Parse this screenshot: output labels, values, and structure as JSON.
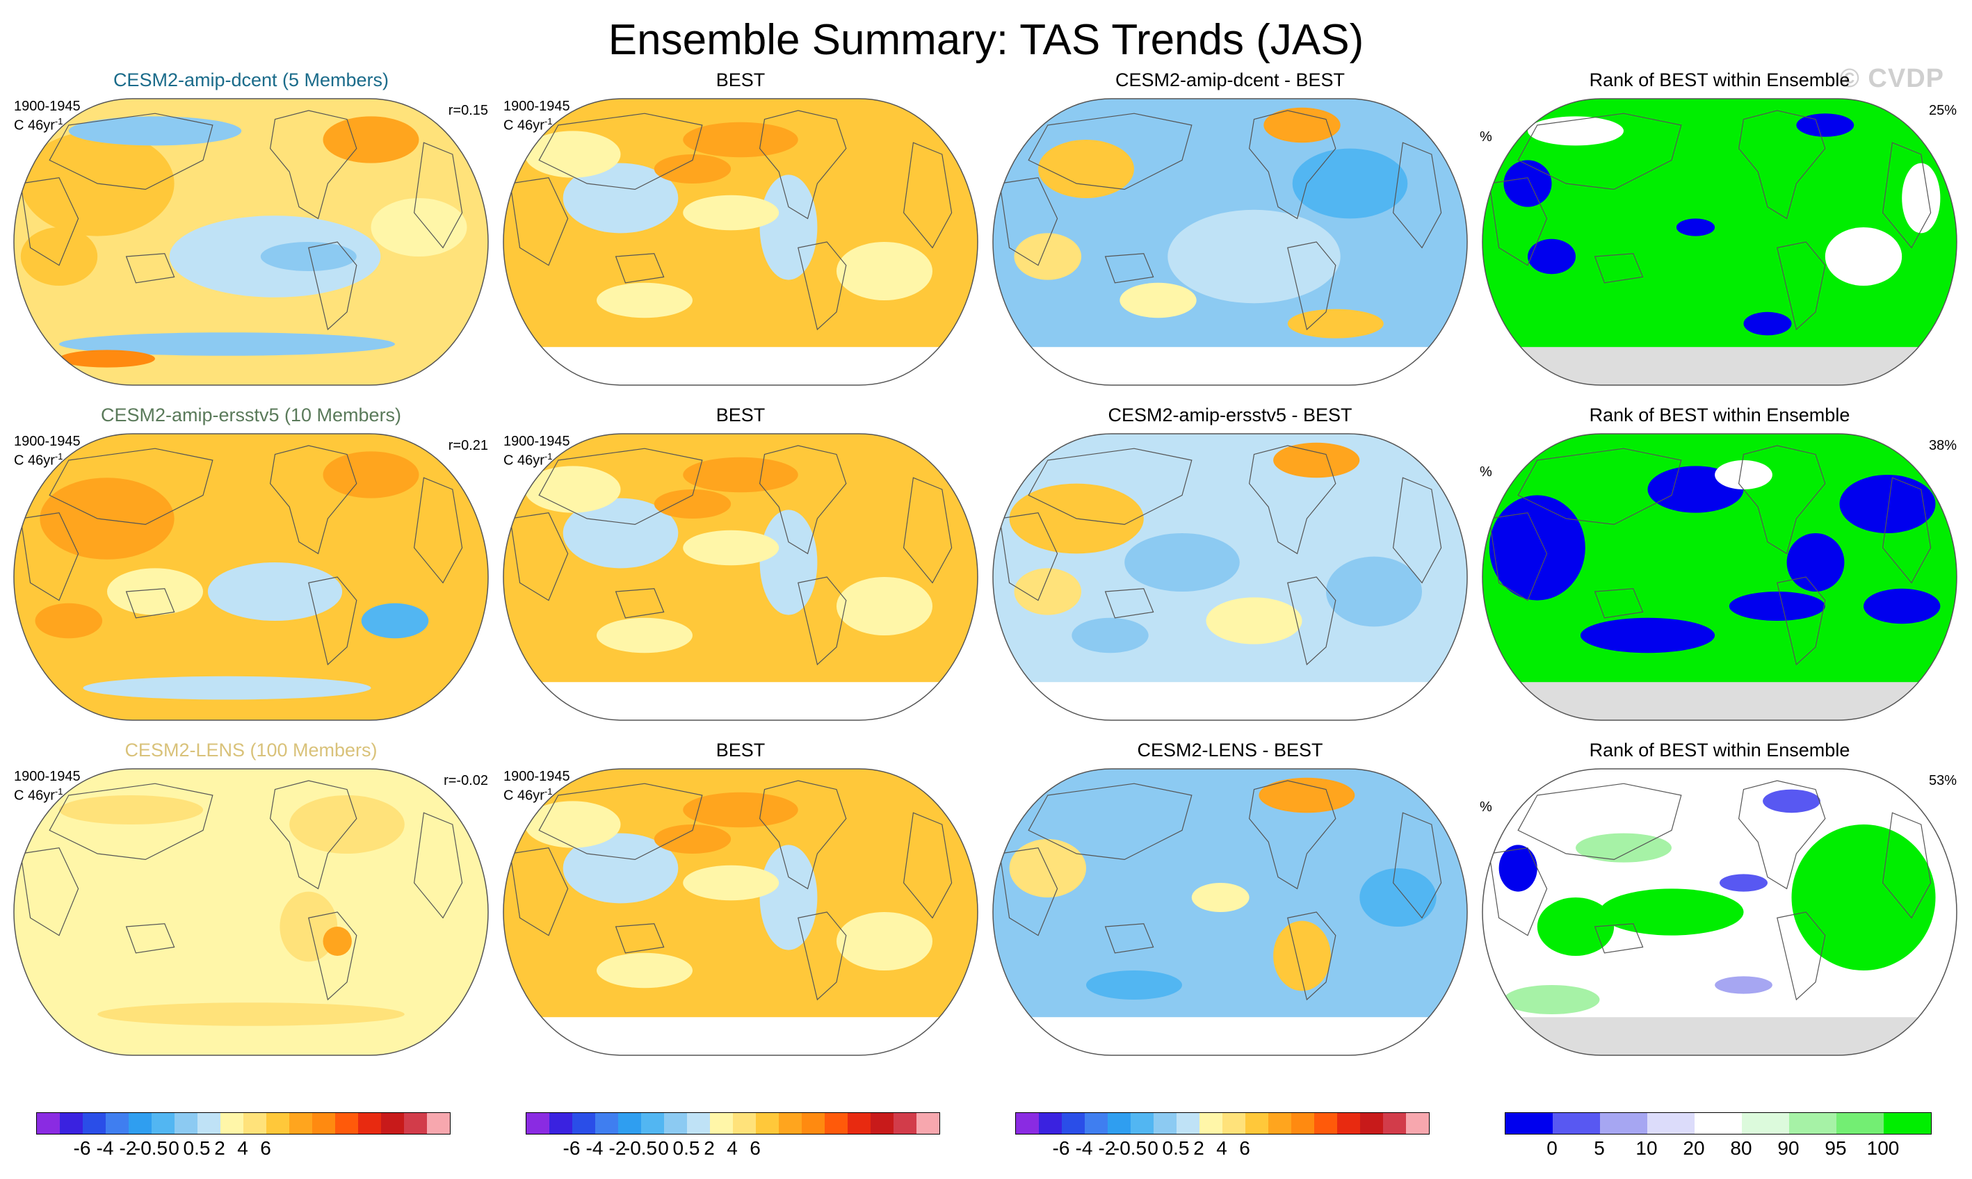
{
  "title": "Ensemble Summary: TAS Trends (JAS)",
  "watermark": "© CVDP",
  "colors": {
    "trend_scale": [
      "#8a2be2",
      "#3a22e0",
      "#2a4ee8",
      "#3f7ef0",
      "#2f9ef0",
      "#52b6f2",
      "#8ccaf2",
      "#bfe2f6",
      "#fff6a8",
      "#ffe27a",
      "#ffc83a",
      "#ffa51e",
      "#ff8a10",
      "#ff5a0a",
      "#e82a10",
      "#c81a1a",
      "#d23c4a",
      "#f7a7ae"
    ],
    "rank_scale": [
      "#0000ee",
      "#5858f2",
      "#a6a6f2",
      "#dcdcfa",
      "#ffffff",
      "#dcfadc",
      "#a6f2a6",
      "#73ee73",
      "#00ee00"
    ],
    "title_colors": {
      "cesm2_amip_dcent": "#1a6b8a",
      "cesm2_amip_ersstv5": "#5a7a5a",
      "cesm2_lens": "#d9c27a",
      "default": "#000000"
    },
    "land_outline": "#555555",
    "antarctica_fill": "#dddddd"
  },
  "rows": [
    {
      "panels": [
        {
          "title": "CESM2-amip-dcent (5 Members)",
          "title_color_key": "cesm2_amip_dcent",
          "period": "1900-1945",
          "units": "C 46yr",
          "units_sup": "-1",
          "corr": "r=0.15",
          "map_style": "model_dcent"
        },
        {
          "title": "BEST",
          "title_color_key": "default",
          "period": "1900-1945",
          "units": "C 46yr",
          "units_sup": "-1",
          "map_style": "obs_best"
        },
        {
          "title": "CESM2-amip-dcent - BEST",
          "title_color_key": "default",
          "map_style": "diff_dcent"
        },
        {
          "title": "Rank of BEST within Ensemble",
          "title_color_key": "default",
          "unit_pct": "%",
          "pct": "25%",
          "map_style": "rank_dcent"
        }
      ]
    },
    {
      "panels": [
        {
          "title": "CESM2-amip-ersstv5 (10 Members)",
          "title_color_key": "cesm2_amip_ersstv5",
          "period": "1900-1945",
          "units": "C 46yr",
          "units_sup": "-1",
          "corr": "r=0.21",
          "map_style": "model_ersst"
        },
        {
          "title": "BEST",
          "title_color_key": "default",
          "period": "1900-1945",
          "units": "C 46yr",
          "units_sup": "-1",
          "map_style": "obs_best"
        },
        {
          "title": "CESM2-amip-ersstv5 - BEST",
          "title_color_key": "default",
          "map_style": "diff_ersst"
        },
        {
          "title": "Rank of BEST within Ensemble",
          "title_color_key": "default",
          "unit_pct": "%",
          "pct": "38%",
          "map_style": "rank_ersst"
        }
      ]
    },
    {
      "panels": [
        {
          "title": "CESM2-LENS (100 Members)",
          "title_color_key": "cesm2_lens",
          "period": "1900-1945",
          "units": "C 46yr",
          "units_sup": "-1",
          "corr": "r=-0.02",
          "map_style": "model_lens"
        },
        {
          "title": "BEST",
          "title_color_key": "default",
          "period": "1900-1945",
          "units": "C 46yr",
          "units_sup": "-1",
          "map_style": "obs_best"
        },
        {
          "title": "CESM2-LENS - BEST",
          "title_color_key": "default",
          "map_style": "diff_lens"
        },
        {
          "title": "Rank of BEST within Ensemble",
          "title_color_key": "default",
          "unit_pct": "%",
          "pct": "53%",
          "map_style": "rank_lens"
        }
      ]
    }
  ],
  "chart_data": {
    "type": "heatmap",
    "projection": "Robinson (global, Pacific-centred)",
    "title": "Ensemble Summary: TAS Trends (JAS)",
    "period": "1900-1945",
    "units": "C 46yr-1",
    "correlations": {
      "CESM2-amip-dcent": 0.15,
      "CESM2-amip-ersstv5": 0.21,
      "CESM2-LENS": -0.02
    },
    "rank_percent": {
      "CESM2-amip-dcent": 25,
      "CESM2-amip-ersstv5": 38,
      "CESM2-LENS": 53
    },
    "trend_colorbar_ticks": [
      "-6",
      "-4",
      "-2",
      "-0.5",
      "0",
      "0.5",
      "2",
      "4",
      "6"
    ],
    "rank_colorbar_ticks": [
      "0",
      "5",
      "10",
      "20",
      "80",
      "90",
      "95",
      "100"
    ]
  }
}
